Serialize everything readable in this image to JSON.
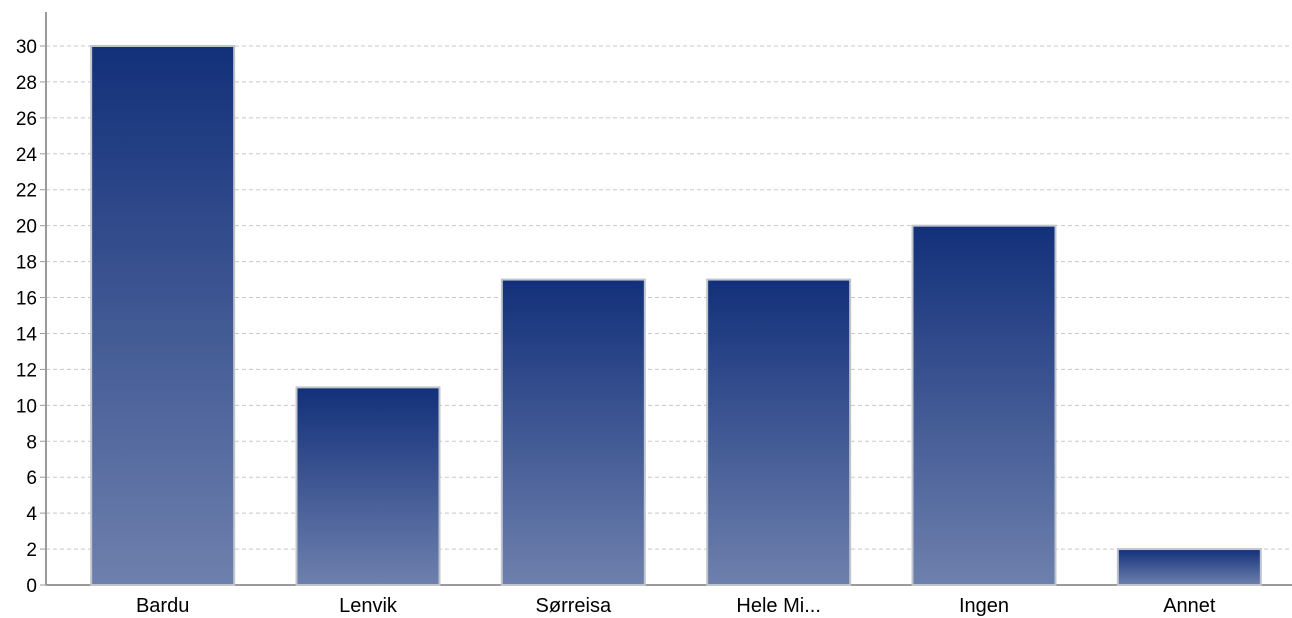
{
  "chart_data": {
    "type": "bar",
    "title": "",
    "xlabel": "",
    "ylabel": "",
    "categories": [
      "Bardu",
      "Lenvik",
      "Sørreisa",
      "Hele Mi...",
      "Ingen",
      "Annet"
    ],
    "values": [
      30,
      11,
      17,
      17,
      20,
      2
    ],
    "ylim": [
      0,
      30
    ],
    "yticks": [
      0,
      2,
      4,
      6,
      8,
      10,
      12,
      14,
      16,
      18,
      20,
      22,
      24,
      26,
      28,
      30
    ],
    "grid": true,
    "legend": "none",
    "colors": {
      "bar_top": "#12307a",
      "bar_bottom": "#6e80ad",
      "bar_border": "#c0c4cc",
      "grid": "#c8c8c8",
      "axis": "#9a9a9a"
    }
  }
}
